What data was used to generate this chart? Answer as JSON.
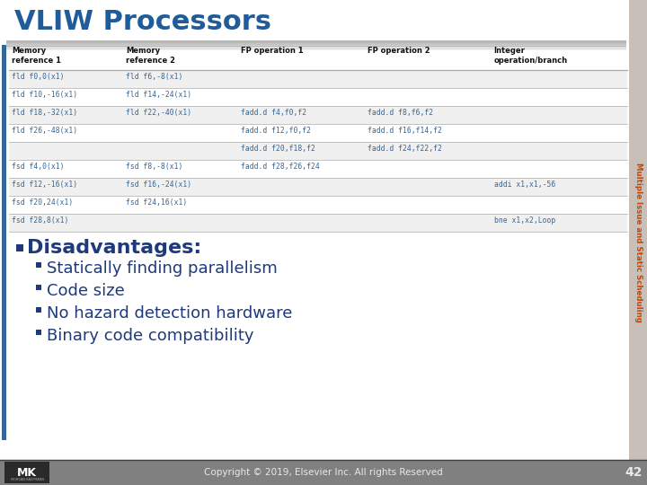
{
  "title": "VLIW Processors",
  "title_color": "#1F5C99",
  "title_fontsize": 22,
  "sidebar_text": "Multiple Issue and Static Scheduling",
  "sidebar_color": "#CC4400",
  "sidebar_bg": "#C8C0B8",
  "table_headers": [
    "Memory\nreference 1",
    "Memory\nreference 2",
    "FP operation 1",
    "FP operation 2",
    "Integer\noperation/branch"
  ],
  "table_rows": [
    [
      "fld f0,0(x1)",
      "fld f6,-8(x1)",
      "",
      "",
      ""
    ],
    [
      "fld f10,-16(x1)",
      "fld f14,-24(x1)",
      "",
      "",
      ""
    ],
    [
      "fld f18,-32(x1)",
      "fld f22,-40(x1)",
      "fadd.d f4,f0,f2",
      "fadd.d f8,f6,f2",
      ""
    ],
    [
      "fld f26,-48(x1)",
      "",
      "fadd.d f12,f0,f2",
      "fadd.d f16,f14,f2",
      ""
    ],
    [
      "",
      "",
      "fadd.d f20,f18,f2",
      "fadd.d f24,f22,f2",
      ""
    ],
    [
      "fsd f4,0(x1)",
      "fsd f8,-8(x1)",
      "fadd.d f28,f26,f24",
      "",
      ""
    ],
    [
      "fsd f12,-16(x1)",
      "fsd f16,-24(x1)",
      "",
      "",
      "addi x1,x1,-56"
    ],
    [
      "fsd f20,24(x1)",
      "fsd f24,16(x1)",
      "",
      "",
      ""
    ],
    [
      "fsd f28,8(x1)",
      "",
      "",
      "",
      "bne x1,x2,Loop"
    ]
  ],
  "table_font_color": "#336699",
  "table_header_color": "#111111",
  "table_line_color": "#AAAAAA",
  "disadvantages_title": "Disadvantages:",
  "disadvantages_color": "#1F3A7A",
  "disadvantages_fontsize": 16,
  "bullet_items": [
    "Statically finding parallelism",
    "Code size",
    "No hazard detection hardware",
    "Binary code compatibility"
  ],
  "bullet_color": "#1F3A7A",
  "bullet_fontsize": 13,
  "footer_text": "Copyright © 2019, Elsevier Inc. All rights Reserved",
  "footer_page": "42",
  "footer_bg": "#808080",
  "bg_color": "#FFFFFF",
  "left_bar_color": "#336699",
  "title_underline_color": "#999999"
}
